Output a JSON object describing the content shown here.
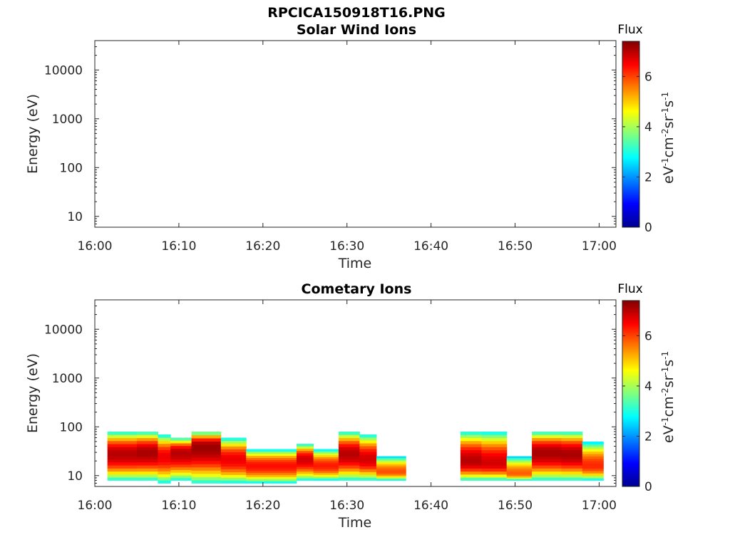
{
  "figure": {
    "title": "RPCICA150918T16.PNG",
    "colors": {
      "axis": "#262626",
      "background": "#ffffff",
      "colormap": "jet"
    }
  },
  "chart_data": [
    {
      "type": "heatmap",
      "title": "Solar Wind Ions",
      "xlabel": "Time",
      "ylabel": "Energy (eV)",
      "x_ticks": [
        "16:00",
        "16:10",
        "16:20",
        "16:30",
        "16:40",
        "16:50",
        "17:00"
      ],
      "y_ticks": [
        "10",
        "100",
        "1000",
        "10000"
      ],
      "y_scale": "log",
      "x_range": [
        "16:00",
        "17:02"
      ],
      "ylim": [
        6,
        40000
      ],
      "colorbar": {
        "label": "Flux",
        "unit_base": [
          "eV",
          "cm",
          "sr",
          "s"
        ],
        "unit_exp": [
          "-1",
          "-2",
          "-1",
          "-1"
        ],
        "ticks": [
          "0",
          "2",
          "4",
          "6"
        ],
        "range": [
          0,
          7.4
        ]
      },
      "bands": []
    },
    {
      "type": "heatmap",
      "title": "Cometary Ions",
      "xlabel": "Time",
      "ylabel": "Energy (eV)",
      "x_ticks": [
        "16:00",
        "16:10",
        "16:20",
        "16:30",
        "16:40",
        "16:50",
        "17:00"
      ],
      "y_ticks": [
        "10",
        "100",
        "1000",
        "10000"
      ],
      "y_scale": "log",
      "x_range": [
        "16:00",
        "17:02"
      ],
      "ylim": [
        6,
        40000
      ],
      "colorbar": {
        "label": "Flux",
        "unit_base": [
          "eV",
          "cm",
          "sr",
          "s"
        ],
        "unit_exp": [
          "-1",
          "-2",
          "-1",
          "-1"
        ],
        "ticks": [
          "0",
          "2",
          "4",
          "6"
        ],
        "range": [
          0,
          7.4
        ]
      },
      "bands": [
        {
          "start": "16:01:30",
          "end": "16:05:00",
          "energy_min": 8,
          "energy_max": 80,
          "peak_energy": 28,
          "peak_flux": 7.0
        },
        {
          "start": "16:05:00",
          "end": "16:07:30",
          "energy_min": 8,
          "energy_max": 80,
          "peak_energy": 30,
          "peak_flux": 7.1
        },
        {
          "start": "16:07:30",
          "end": "16:09:00",
          "energy_min": 7,
          "energy_max": 70,
          "peak_energy": 25,
          "peak_flux": 6.6
        },
        {
          "start": "16:09:00",
          "end": "16:11:30",
          "energy_min": 8,
          "energy_max": 60,
          "peak_energy": 30,
          "peak_flux": 7.0
        },
        {
          "start": "16:11:30",
          "end": "16:15:00",
          "energy_min": 7,
          "energy_max": 80,
          "peak_energy": 40,
          "peak_flux": 7.2
        },
        {
          "start": "16:15:00",
          "end": "16:18:00",
          "energy_min": 7,
          "energy_max": 60,
          "peak_energy": 22,
          "peak_flux": 6.6
        },
        {
          "start": "16:18:00",
          "end": "16:24:00",
          "energy_min": 7,
          "energy_max": 35,
          "peak_energy": 16,
          "peak_flux": 6.4
        },
        {
          "start": "16:24:00",
          "end": "16:26:00",
          "energy_min": 8,
          "energy_max": 45,
          "peak_energy": 22,
          "peak_flux": 6.8
        },
        {
          "start": "16:26:00",
          "end": "16:29:00",
          "energy_min": 8,
          "energy_max": 35,
          "peak_energy": 16,
          "peak_flux": 6.3
        },
        {
          "start": "16:29:00",
          "end": "16:31:30",
          "energy_min": 8,
          "energy_max": 80,
          "peak_energy": 28,
          "peak_flux": 7.0
        },
        {
          "start": "16:31:30",
          "end": "16:33:30",
          "energy_min": 8,
          "energy_max": 70,
          "peak_energy": 22,
          "peak_flux": 6.8
        },
        {
          "start": "16:33:30",
          "end": "16:37:00",
          "energy_min": 8,
          "energy_max": 25,
          "peak_energy": 12,
          "peak_flux": 5.9
        },
        {
          "start": "16:43:30",
          "end": "16:46:00",
          "energy_min": 8,
          "energy_max": 80,
          "peak_energy": 20,
          "peak_flux": 7.0
        },
        {
          "start": "16:46:00",
          "end": "16:49:00",
          "energy_min": 8,
          "energy_max": 80,
          "peak_energy": 18,
          "peak_flux": 6.8
        },
        {
          "start": "16:49:00",
          "end": "16:52:00",
          "energy_min": 8,
          "energy_max": 25,
          "peak_energy": 11,
          "peak_flux": 5.8
        },
        {
          "start": "16:52:00",
          "end": "16:55:30",
          "energy_min": 8,
          "energy_max": 80,
          "peak_energy": 30,
          "peak_flux": 7.1
        },
        {
          "start": "16:55:30",
          "end": "16:58:00",
          "energy_min": 8,
          "energy_max": 80,
          "peak_energy": 28,
          "peak_flux": 7.1
        },
        {
          "start": "16:58:00",
          "end": "17:00:30",
          "energy_min": 8,
          "energy_max": 50,
          "peak_energy": 16,
          "peak_flux": 6.2
        }
      ]
    }
  ]
}
